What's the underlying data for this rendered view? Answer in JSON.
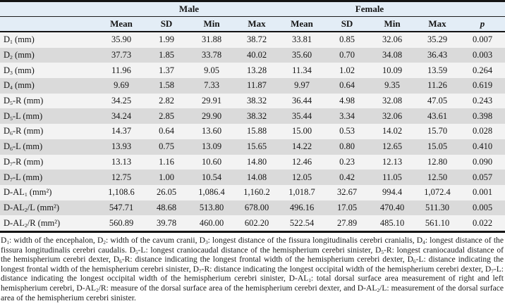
{
  "table": {
    "group_headers": {
      "male": "Male",
      "female": "Female"
    },
    "column_headers": [
      "Mean",
      "SD",
      "Min",
      "Max",
      "Mean",
      "SD",
      "Min",
      "Max",
      "p"
    ],
    "rows": [
      {
        "label": [
          {
            "t": "D"
          },
          {
            "s": "1"
          },
          {
            "t": " (mm)"
          }
        ],
        "values": [
          "35.90",
          "1.99",
          "31.88",
          "38.72",
          "33.81",
          "0.85",
          "32.06",
          "35.29",
          "0.007"
        ]
      },
      {
        "label": [
          {
            "t": "D"
          },
          {
            "s": "2"
          },
          {
            "t": " (mm)"
          }
        ],
        "values": [
          "37.73",
          "1.85",
          "33.78",
          "40.02",
          "35.60",
          "0.70",
          "34.08",
          "36.43",
          "0.003"
        ]
      },
      {
        "label": [
          {
            "t": "D"
          },
          {
            "s": "3"
          },
          {
            "t": " (mm)"
          }
        ],
        "values": [
          "11.96",
          "1.37",
          "9.05",
          "13.28",
          "11.34",
          "1.02",
          "10.09",
          "13.59",
          "0.264"
        ]
      },
      {
        "label": [
          {
            "t": "D"
          },
          {
            "s": "4"
          },
          {
            "t": " (mm)"
          }
        ],
        "values": [
          "9.69",
          "1.58",
          "7.33",
          "11.87",
          "9.97",
          "0.64",
          "9.35",
          "11.26",
          "0.619"
        ]
      },
      {
        "label": [
          {
            "t": "D"
          },
          {
            "s": "5"
          },
          {
            "t": "-R (mm)"
          }
        ],
        "values": [
          "34.25",
          "2.82",
          "29.91",
          "38.32",
          "36.44",
          "4.98",
          "32.08",
          "47.05",
          "0.243"
        ]
      },
      {
        "label": [
          {
            "t": "D"
          },
          {
            "s": "5"
          },
          {
            "t": "-L (mm)"
          }
        ],
        "values": [
          "34.24",
          "2.85",
          "29.90",
          "38.32",
          "35.44",
          "3.34",
          "32.06",
          "43.61",
          "0.398"
        ]
      },
      {
        "label": [
          {
            "t": "D"
          },
          {
            "s": "6"
          },
          {
            "t": "-R (mm)"
          }
        ],
        "values": [
          "14.37",
          "0.64",
          "13.60",
          "15.88",
          "15.00",
          "0.53",
          "14.02",
          "15.70",
          "0.028"
        ]
      },
      {
        "label": [
          {
            "t": "D"
          },
          {
            "s": "6"
          },
          {
            "t": "-L (mm)"
          }
        ],
        "values": [
          "13.93",
          "0.75",
          "13.09",
          "15.65",
          "14.22",
          "0.80",
          "12.65",
          "15.05",
          "0.410"
        ]
      },
      {
        "label": [
          {
            "t": "D"
          },
          {
            "s": "7"
          },
          {
            "t": "-R (mm)"
          }
        ],
        "values": [
          "13.13",
          "1.16",
          "10.60",
          "14.80",
          "12.46",
          "0.23",
          "12.13",
          "12.80",
          "0.090"
        ]
      },
      {
        "label": [
          {
            "t": "D"
          },
          {
            "s": "7"
          },
          {
            "t": "-L (mm)"
          }
        ],
        "values": [
          "12.75",
          "1.00",
          "10.54",
          "14.08",
          "12.05",
          "0.42",
          "11.05",
          "12.50",
          "0.057"
        ]
      },
      {
        "label": [
          {
            "t": "D-AL"
          },
          {
            "s": "1"
          },
          {
            "t": " (mm²)"
          }
        ],
        "values": [
          "1,108.6",
          "26.05",
          "1,086.4",
          "1,160.2",
          "1,018.7",
          "32.67",
          "994.4",
          "1,072.4",
          "0.001"
        ]
      },
      {
        "label": [
          {
            "t": "D-AL"
          },
          {
            "s": "2"
          },
          {
            "t": "/L (mm²)"
          }
        ],
        "values": [
          "547.71",
          "48.68",
          "513.80",
          "678.00",
          "496.16",
          "17.05",
          "470.40",
          "511.30",
          "0.005"
        ]
      },
      {
        "label": [
          {
            "t": "D-AL"
          },
          {
            "s": "2"
          },
          {
            "t": "/R (mm²)"
          }
        ],
        "values": [
          "560.89",
          "39.78",
          "460.00",
          "602.20",
          "522.54",
          "27.89",
          "485.10",
          "561.10",
          "0.022"
        ]
      }
    ]
  },
  "footnote": {
    "segments": [
      {
        "t": "D"
      },
      {
        "s": "1"
      },
      {
        "t": ": width of the encephalon, D"
      },
      {
        "s": "2"
      },
      {
        "t": ": width of the cavum cranii, D"
      },
      {
        "s": "3"
      },
      {
        "t": ": longest distance of the fissura longitudinalis cerebri cranialis, D"
      },
      {
        "s": "4"
      },
      {
        "t": ": longest distance of the fissura longitudinalis cerebri caudalis. D"
      },
      {
        "s": "5"
      },
      {
        "t": "-L: longest craniocaudal distance of the hemispherium cerebri sinister, D"
      },
      {
        "s": "5"
      },
      {
        "t": "-R: longest craniocaudal distance of the hemispherium cerebri dexter, D"
      },
      {
        "s": "6"
      },
      {
        "t": "-R: distance indicating the longest frontal width of the hemispherium cerebri dexter, D"
      },
      {
        "s": "6"
      },
      {
        "t": "-L: distance indicating the longest frontal width of the hemispherium cerebri sinister, D"
      },
      {
        "s": "7"
      },
      {
        "t": "-R: distance indicating the longest occipital width of the hemispherium cerebri dexter, D"
      },
      {
        "s": "7"
      },
      {
        "t": "-L: distance indicating the longest occipital width of the hemispherium cerebri sinister, D-AL"
      },
      {
        "s": "1"
      },
      {
        "t": ": total dorsal surface area measurement of right and left hemispherium cerebri, D-AL"
      },
      {
        "s": "2"
      },
      {
        "t": "/R: measure of the dorsal surface area of the hemispherium cerebri dexter, and D-AL"
      },
      {
        "s": "2"
      },
      {
        "t": "/L: measurement of the dorsal surface area of the hemispherium cerebri sinister."
      }
    ]
  },
  "colors": {
    "header_bg": "#e3edf6",
    "row_light": "#f3f3f3",
    "row_dark": "#dadada",
    "border": "#141414"
  }
}
